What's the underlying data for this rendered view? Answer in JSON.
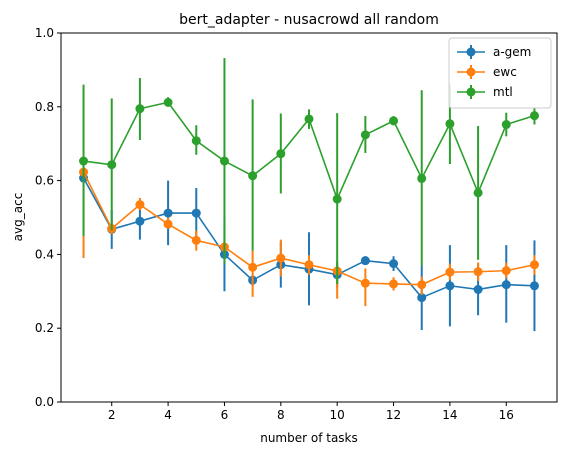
{
  "chart_data": {
    "type": "line",
    "title": "bert_adapter - nusacrowd all random",
    "xlabel": "number of tasks",
    "ylabel": "avg_acc",
    "xlim": [
      0.2,
      17.8
    ],
    "ylim": [
      0.0,
      1.0
    ],
    "xticks": [
      2,
      4,
      6,
      8,
      10,
      12,
      14,
      16
    ],
    "yticks": [
      0.0,
      0.2,
      0.4,
      0.6,
      0.8,
      1.0
    ],
    "grid": false,
    "legend_position": "top-right",
    "x": [
      1,
      2,
      3,
      4,
      5,
      6,
      7,
      8,
      9,
      10,
      11,
      12,
      13,
      14,
      15,
      16,
      17
    ],
    "series": [
      {
        "name": "a-gem",
        "color": "#1f77b4",
        "values": [
          0.607,
          0.468,
          0.49,
          0.512,
          0.512,
          0.4,
          0.33,
          0.372,
          0.36,
          0.345,
          0.383,
          0.375,
          0.283,
          0.315,
          0.305,
          0.318,
          0.315
        ],
        "err_low": [
          0.59,
          0.415,
          0.44,
          0.425,
          0.445,
          0.3,
          0.315,
          0.31,
          0.262,
          0.31,
          0.372,
          0.355,
          0.195,
          0.205,
          0.235,
          0.215,
          0.192
        ],
        "err_high": [
          0.625,
          0.52,
          0.54,
          0.6,
          0.58,
          0.5,
          0.345,
          0.435,
          0.46,
          0.38,
          0.395,
          0.395,
          0.37,
          0.425,
          0.375,
          0.425,
          0.438
        ]
      },
      {
        "name": "ewc",
        "color": "#ff7f0e",
        "values": [
          0.623,
          0.47,
          0.535,
          0.482,
          0.438,
          0.42,
          0.365,
          0.39,
          0.372,
          0.355,
          0.322,
          0.32,
          0.318,
          0.352,
          0.353,
          0.356,
          0.372
        ],
        "err_low": [
          0.39,
          0.455,
          0.52,
          0.47,
          0.41,
          0.395,
          0.285,
          0.34,
          0.345,
          0.28,
          0.26,
          0.302,
          0.29,
          0.33,
          0.328,
          0.335,
          0.345
        ],
        "err_high": [
          0.64,
          0.485,
          0.553,
          0.5,
          0.465,
          0.445,
          0.41,
          0.44,
          0.398,
          0.372,
          0.362,
          0.338,
          0.34,
          0.375,
          0.378,
          0.378,
          0.398
        ]
      },
      {
        "name": "mtl",
        "color": "#2ca02c",
        "values": [
          0.653,
          0.643,
          0.795,
          0.812,
          0.708,
          0.653,
          0.613,
          0.673,
          0.767,
          0.55,
          0.724,
          0.762,
          0.606,
          0.754,
          0.567,
          0.752,
          0.776
        ],
        "err_low": [
          0.45,
          0.465,
          0.71,
          0.8,
          0.67,
          0.375,
          0.41,
          0.565,
          0.74,
          0.32,
          0.675,
          0.75,
          0.37,
          0.645,
          0.385,
          0.72,
          0.752
        ],
        "err_high": [
          0.86,
          0.823,
          0.878,
          0.826,
          0.75,
          0.932,
          0.82,
          0.782,
          0.793,
          0.783,
          0.775,
          0.775,
          0.845,
          0.86,
          0.748,
          0.784,
          0.8
        ]
      }
    ]
  }
}
